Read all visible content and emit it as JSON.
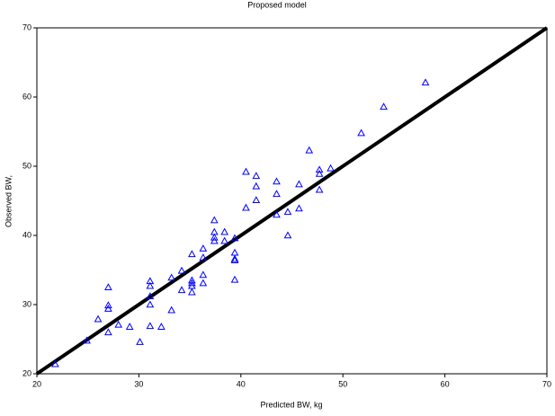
{
  "chart_data": {
    "type": "scatter",
    "title": "Proposed model",
    "xlabel": "Predicted BW, kg",
    "ylabel": "Observed BW,",
    "xlim": [
      20,
      70
    ],
    "ylim": [
      20,
      70
    ],
    "xticks": [
      20,
      30,
      40,
      50,
      60,
      70
    ],
    "yticks": [
      20,
      30,
      40,
      50,
      60,
      70
    ],
    "grid": false,
    "series": [
      {
        "color": "#0000ff",
        "marker": "triangle",
        "x": [
          21.8,
          24.9,
          26.0,
          27.0,
          27.0,
          27.0,
          27.0,
          28.0,
          29.1,
          30.1,
          31.1,
          31.1,
          31.1,
          31.1,
          31.1,
          32.2,
          33.2,
          33.2,
          34.2,
          34.2,
          35.2,
          35.2,
          35.2,
          35.2,
          35.2,
          36.3,
          36.3,
          36.3,
          36.3,
          37.4,
          37.4,
          37.4,
          37.4,
          38.4,
          38.4,
          39.4,
          39.4,
          39.4,
          39.4,
          39.4,
          40.5,
          40.5,
          41.5,
          41.5,
          41.5,
          43.5,
          43.5,
          43.5,
          44.6,
          44.6,
          45.7,
          45.7,
          46.7,
          47.7,
          47.7,
          47.7,
          48.8,
          51.8,
          54.0,
          58.1
        ],
        "y": [
          21.4,
          24.8,
          27.9,
          32.5,
          29.9,
          29.4,
          26.0,
          27.1,
          26.8,
          24.6,
          33.4,
          32.7,
          31.2,
          30.0,
          26.9,
          26.8,
          33.9,
          29.2,
          34.9,
          32.1,
          37.3,
          33.5,
          33.1,
          32.7,
          31.8,
          38.1,
          36.8,
          34.3,
          33.1,
          42.2,
          40.5,
          39.7,
          39.2,
          40.5,
          39.2,
          39.6,
          37.5,
          36.6,
          36.4,
          33.6,
          49.2,
          44.0,
          48.6,
          47.1,
          45.1,
          47.8,
          46.0,
          43.0,
          43.4,
          40.0,
          47.4,
          43.9,
          52.3,
          49.5,
          48.9,
          46.6,
          49.7,
          54.8,
          58.6,
          62.1
        ]
      }
    ],
    "lines": [
      {
        "color": "#000000",
        "x": [
          20,
          70
        ],
        "y": [
          20,
          70
        ]
      }
    ]
  }
}
